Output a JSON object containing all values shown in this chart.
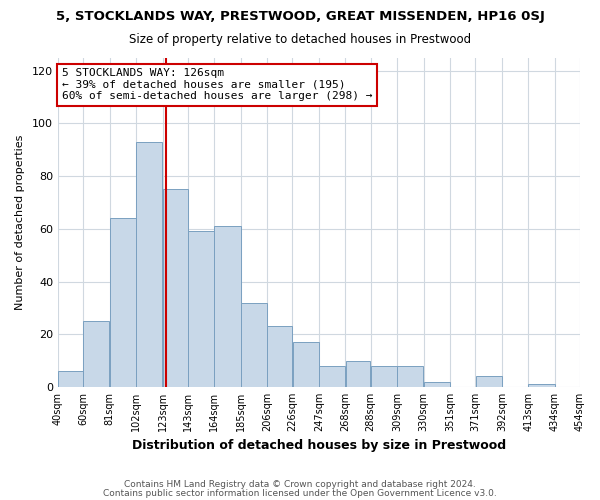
{
  "title": "5, STOCKLANDS WAY, PRESTWOOD, GREAT MISSENDEN, HP16 0SJ",
  "subtitle": "Size of property relative to detached houses in Prestwood",
  "xlabel": "Distribution of detached houses by size in Prestwood",
  "ylabel": "Number of detached properties",
  "footer1": "Contains HM Land Registry data © Crown copyright and database right 2024.",
  "footer2": "Contains public sector information licensed under the Open Government Licence v3.0.",
  "bar_left_edges": [
    40,
    60,
    81,
    102,
    123,
    143,
    164,
    185,
    206,
    226,
    247,
    268,
    288,
    309,
    330,
    351,
    371,
    392,
    413,
    434
  ],
  "bar_widths": [
    20,
    21,
    21,
    21,
    20,
    21,
    21,
    21,
    20,
    21,
    21,
    20,
    21,
    21,
    21,
    20,
    21,
    21,
    21,
    20
  ],
  "bar_heights": [
    6,
    25,
    64,
    93,
    75,
    59,
    61,
    32,
    23,
    17,
    8,
    10,
    8,
    8,
    2,
    0,
    4,
    0,
    1,
    0
  ],
  "tick_labels": [
    "40sqm",
    "60sqm",
    "81sqm",
    "102sqm",
    "123sqm",
    "143sqm",
    "164sqm",
    "185sqm",
    "206sqm",
    "226sqm",
    "247sqm",
    "268sqm",
    "288sqm",
    "309sqm",
    "330sqm",
    "351sqm",
    "371sqm",
    "392sqm",
    "413sqm",
    "434sqm",
    "454sqm"
  ],
  "tick_positions": [
    40,
    60,
    81,
    102,
    123,
    143,
    164,
    185,
    206,
    226,
    247,
    268,
    288,
    309,
    330,
    351,
    371,
    392,
    413,
    434,
    454
  ],
  "bar_color": "#c8d8e8",
  "bar_edge_color": "#7aa0c0",
  "marker_x": 126,
  "marker_color": "#cc0000",
  "ylim": [
    0,
    125
  ],
  "yticks": [
    0,
    20,
    40,
    60,
    80,
    100,
    120
  ],
  "annotation_title": "5 STOCKLANDS WAY: 126sqm",
  "annotation_line1": "← 39% of detached houses are smaller (195)",
  "annotation_line2": "60% of semi-detached houses are larger (298) →",
  "background_color": "#ffffff",
  "grid_color": "#d0d8e0",
  "xlim_left": 40,
  "xlim_right": 454
}
